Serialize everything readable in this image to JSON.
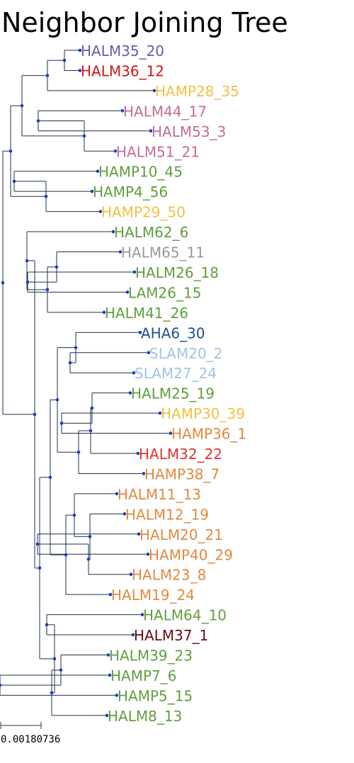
{
  "title": "Neighbor Joining Tree",
  "scale_bar": {
    "label": "0.00180736"
  },
  "colors": {
    "branch": "#1f2f4a",
    "node": "#1a3cc8"
  },
  "tree": {
    "children": [
      {
        "children": [
          {
            "children": [
              {
                "children": [
                  {
                    "children": [
                      {
                        "leaf": "HALM35_20",
                        "color": "#6a59b0"
                      },
                      {
                        "leaf": "HALM36_12",
                        "color": "#cc1616"
                      }
                    ]
                  },
                  {
                    "leaf": "HAMP28_35",
                    "color": "#f3c042"
                  }
                ]
              },
              {
                "children": [
                  {
                    "children": [
                      {
                        "leaf": "HALM44_17",
                        "color": "#c26d98"
                      },
                      {
                        "leaf": "HALM53_3",
                        "color": "#c26d98"
                      }
                    ]
                  },
                  {
                    "leaf": "HALM51_21",
                    "color": "#c26d98"
                  }
                ]
              }
            ]
          },
          {
            "children": [
              {
                "children": [
                  {
                    "leaf": "HAMP10_45",
                    "color": "#5f9e3c"
                  },
                  {
                    "leaf": "HAMP4_56",
                    "color": "#5f9e3c"
                  }
                ]
              },
              {
                "leaf": "HAMP29_50",
                "color": "#f3c042"
              }
            ]
          }
        ]
      },
      {
        "children": [
          {
            "children": [
              {
                "leaf": "HALM62_6",
                "color": "#5f9e3c"
              },
              {
                "children": [
                  {
                    "children": [
                      {
                        "leaf": "HALM65_11",
                        "color": "#9a9a9a"
                      },
                      {
                        "children": [
                          {
                            "leaf": "HALM26_18",
                            "color": "#5f9e3c"
                          },
                          {
                            "leaf": "LAM26_15",
                            "color": "#5f9e3c"
                          }
                        ]
                      }
                    ]
                  },
                  {
                    "leaf": "HALM41_26",
                    "color": "#5f9e3c"
                  }
                ]
              }
            ]
          },
          {
            "children": [
              {
                "children": [
                  {
                    "children": [
                      {
                        "children": [
                          {
                            "leaf": "AHA6_30",
                            "color": "#1e4e8c"
                          },
                          {
                            "children": [
                              {
                                "leaf": "SLAM20_2",
                                "color": "#9fc3e7"
                              },
                              {
                                "leaf": "SLAM27_24",
                                "color": "#9fc3e7"
                              }
                            ]
                          }
                        ]
                      },
                      {
                        "children": [
                          {
                            "children": [
                              {
                                "children": [
                                  {
                                    "leaf": "HALM25_19",
                                    "color": "#5f9e3c"
                                  },
                                  {
                                    "children": [
                                      {
                                        "leaf": "HAMP30_39",
                                        "color": "#f3c042"
                                      },
                                      {
                                        "leaf": "HAMP36_1",
                                        "color": "#e0893e"
                                      }
                                    ]
                                  }
                                ]
                              },
                              {
                                "leaf": "HALM32_22",
                                "color": "#e63030"
                              }
                            ]
                          },
                          {
                            "leaf": "HAMP38_7",
                            "color": "#e0893e"
                          }
                        ]
                      }
                    ]
                  },
                  {
                    "children": [
                      {
                        "children": [
                          {
                            "leaf": "HALM11_13",
                            "color": "#e0893e"
                          },
                          {
                            "children": [
                              {
                                "leaf": "HALM12_19",
                                "color": "#e0893e"
                              },
                              {
                                "children": [
                                  {
                                    "children": [
                                      {
                                        "leaf": "HALM20_21",
                                        "color": "#e0893e"
                                      },
                                      {
                                        "leaf": "HAMP40_29",
                                        "color": "#e0893e"
                                      }
                                    ]
                                  },
                                  {
                                    "leaf": "HALM23_8",
                                    "color": "#e0893e"
                                  }
                                ]
                              }
                            ]
                          }
                        ]
                      },
                      {
                        "leaf": "HALM19_24",
                        "color": "#e0893e"
                      }
                    ]
                  }
                ]
              },
              {
                "children": [
                  {
                    "children": [
                      {
                        "leaf": "HALM64_10",
                        "color": "#5f9e3c"
                      },
                      {
                        "leaf": "HALM37_1",
                        "color": "#6b0a14"
                      }
                    ]
                  },
                  {
                    "children": [
                      {
                        "children": [
                          {
                            "leaf": "HALM39_23",
                            "color": "#5f9e3c"
                          },
                          {
                            "children": [
                              {
                                "leaf": "HAMP7_6",
                                "color": "#5f9e3c"
                              },
                              {
                                "leaf": "HAMP5_15",
                                "color": "#5f9e3c"
                              }
                            ]
                          }
                        ]
                      },
                      {
                        "leaf": "HALM8_13",
                        "color": "#5f9e3c"
                      }
                    ]
                  }
                ]
              }
            ]
          }
        ]
      }
    ]
  }
}
